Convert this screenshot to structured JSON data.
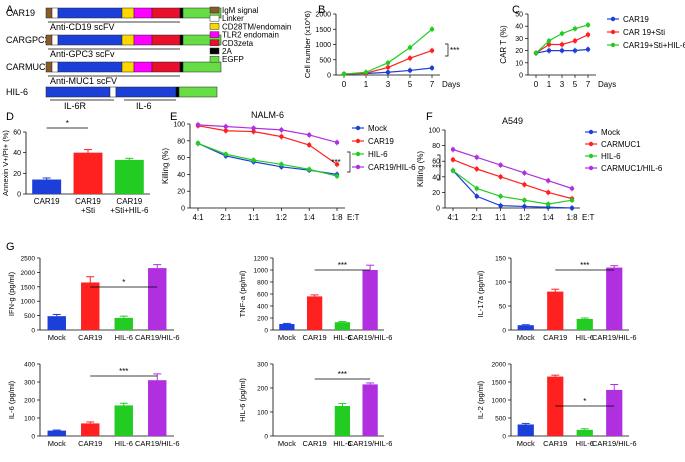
{
  "colors": {
    "blue": "#1b3fd8",
    "red": "#ff2020",
    "green": "#22cc22",
    "purple": "#b030e0",
    "igm": "#8b5a2b",
    "linker": "#ffffff",
    "cd28": "#ffd700",
    "tlr2": "#ff00ff",
    "cd3": "#e8102a",
    "t2a": "#000000",
    "egfp": "#66dd44"
  },
  "panel_letters": {
    "A": "A",
    "B": "B",
    "C": "C",
    "D": "D",
    "E": "E",
    "F": "F",
    "G": "G"
  },
  "constructs": [
    {
      "name": "CAR19",
      "label": "Anti-CD19 scFV",
      "segments": [
        "igm",
        "linker",
        "scfv",
        "cd28",
        "tlr2",
        "cd3",
        "t2a",
        "egfp"
      ]
    },
    {
      "name": "CARGPC3",
      "label": "Anti-GPC3 scFv",
      "segments": [
        "igm",
        "linker",
        "scfv",
        "cd28",
        "tlr2",
        "cd3",
        "t2a",
        "egfp"
      ]
    },
    {
      "name": "CARMUC1",
      "label": "Anti-MUC1 scFV",
      "segments": [
        "igm",
        "linker",
        "scfv",
        "cd28",
        "tlr2",
        "cd3",
        "t2a",
        "egfp"
      ]
    },
    {
      "name": "HIL-6",
      "label": "",
      "sublabels": [
        "IL-6R",
        "IL-6"
      ],
      "segments": [
        "il6r",
        "linker",
        "il6",
        "t2a",
        "egfp"
      ]
    }
  ],
  "construct_legend": [
    {
      "label": "IgM signal",
      "color_key": "igm"
    },
    {
      "label": "Linker",
      "color_key": "linker"
    },
    {
      "label": "CD28TM/endomain",
      "color_key": "cd28"
    },
    {
      "label": "TLR2 endomain",
      "color_key": "tlr2"
    },
    {
      "label": "CD3zeta",
      "color_key": "cd3"
    },
    {
      "label": "2A",
      "color_key": "t2a"
    },
    {
      "label": "EGFP",
      "color_key": "egfp"
    }
  ],
  "chart_data": [
    {
      "panel": "B",
      "type": "line",
      "ylabel": "Cell number (x10^6)",
      "xlabel": "Days",
      "x": [
        0,
        1,
        3,
        5,
        7
      ],
      "ylim": [
        0,
        2000
      ],
      "yticks": [
        "0",
        "500",
        "1000",
        "1500",
        "2000"
      ],
      "series": [
        {
          "name": "CAR19",
          "color_key": "blue",
          "values": [
            30,
            50,
            90,
            150,
            230
          ]
        },
        {
          "name": "CAR 19+Sti",
          "color_key": "red",
          "values": [
            30,
            60,
            250,
            550,
            800
          ]
        },
        {
          "name": "CAR19+Sti+HIL-6",
          "color_key": "green",
          "values": [
            30,
            90,
            400,
            900,
            1500
          ]
        }
      ],
      "annotation": "***"
    },
    {
      "panel": "C",
      "type": "line",
      "ylabel": "CAR T (%)",
      "xlabel": "Days",
      "x": [
        0,
        1,
        3,
        5,
        7
      ],
      "ylim": [
        0,
        50
      ],
      "yticks": [
        "0",
        "10",
        "20",
        "30",
        "40",
        "50"
      ],
      "series": [
        {
          "name": "CAR19",
          "color_key": "blue",
          "values": [
            18,
            20,
            20,
            20,
            21
          ]
        },
        {
          "name": "CAR 19+Sti",
          "color_key": "red",
          "values": [
            18,
            25,
            25,
            28,
            33
          ]
        },
        {
          "name": "CAR19+Sti+HIL-6",
          "color_key": "green",
          "values": [
            18,
            28,
            34,
            38,
            41
          ]
        }
      ]
    },
    {
      "panel": "D",
      "type": "bar",
      "ylabel": "Annexin V+/PI+ (%)",
      "ylim": [
        0,
        60
      ],
      "yticks": [
        "0",
        "20",
        "40",
        "60"
      ],
      "categories": [
        "CAR19",
        "CAR19\n+Sti",
        "CAR19\n+Sti+HIL-6"
      ],
      "category_lines": [
        [
          "CAR19"
        ],
        [
          "CAR19",
          "+Sti"
        ],
        [
          "CAR19",
          "+Sti+HIL-6"
        ]
      ],
      "values": [
        14,
        40,
        33
      ],
      "errors": [
        1.5,
        3,
        1.5
      ],
      "color_keys": [
        "blue",
        "red",
        "green"
      ],
      "annotation": "*"
    },
    {
      "panel": "E",
      "type": "line",
      "title": "NALM-6",
      "ylabel": "Killing (%)",
      "xlabel": "E:T",
      "categories": [
        "4:1",
        "2:1",
        "1:1",
        "1:2",
        "1:4",
        "1:8"
      ],
      "ylim": [
        0,
        100
      ],
      "yticks": [
        "0",
        "20",
        "40",
        "60",
        "80",
        "100"
      ],
      "series": [
        {
          "name": "Mock",
          "color_key": "blue",
          "values": [
            77,
            62,
            55,
            49,
            45,
            40
          ]
        },
        {
          "name": "CAR19",
          "color_key": "red",
          "values": [
            98,
            92,
            91,
            85,
            75,
            52
          ]
        },
        {
          "name": "HIL-6",
          "color_key": "green",
          "values": [
            77,
            64,
            57,
            52,
            46,
            38
          ]
        },
        {
          "name": "CAR19/HIL-6",
          "color_key": "purple",
          "values": [
            99,
            97,
            95,
            93,
            87,
            78
          ]
        }
      ],
      "annotation": "***"
    },
    {
      "panel": "F",
      "type": "line",
      "title": "A549",
      "ylabel": "Killing (%)",
      "xlabel": "E:T",
      "categories": [
        "4:1",
        "2:1",
        "1:1",
        "1:2",
        "1:4",
        "1:8"
      ],
      "ylim": [
        0,
        100
      ],
      "yticks": [
        "0",
        "20",
        "40",
        "60",
        "80",
        "100"
      ],
      "series": [
        {
          "name": "Mock",
          "color_key": "blue",
          "values": [
            48,
            15,
            3,
            2,
            1,
            0
          ]
        },
        {
          "name": "CARMUC1",
          "color_key": "red",
          "values": [
            62,
            50,
            40,
            30,
            20,
            12
          ]
        },
        {
          "name": "HIL-6",
          "color_key": "green",
          "values": [
            48,
            25,
            15,
            10,
            5,
            10
          ]
        },
        {
          "name": "CARMUC1/HIL-6",
          "color_key": "purple",
          "values": [
            75,
            65,
            55,
            45,
            35,
            25
          ]
        }
      ],
      "annotation": "***"
    },
    {
      "panel": "G1",
      "type": "bar",
      "ylabel": "IFN-g (pg/ml)",
      "ylim": [
        0,
        2500
      ],
      "yticks": [
        "0",
        "500",
        "1000",
        "1500",
        "2000",
        "2500"
      ],
      "categories": [
        "Mock",
        "CAR19",
        "HIL-6",
        "CAR19/HIL-6"
      ],
      "values": [
        480,
        1650,
        420,
        2150
      ],
      "errors": [
        60,
        200,
        60,
        120
      ],
      "color_keys": [
        "blue",
        "red",
        "green",
        "purple"
      ],
      "annotation": "*"
    },
    {
      "panel": "G2",
      "type": "bar",
      "ylabel": "TNF-a (pg/ml)",
      "ylim": [
        0,
        1200
      ],
      "yticks": [
        "0",
        "200",
        "400",
        "600",
        "800",
        "1000",
        "1200"
      ],
      "categories": [
        "Mock",
        "CAR19",
        "HIL-6",
        "CAR19/HIL-6"
      ],
      "values": [
        100,
        560,
        130,
        1000
      ],
      "errors": [
        10,
        25,
        10,
        80
      ],
      "color_keys": [
        "blue",
        "red",
        "green",
        "purple"
      ],
      "annotation": "***"
    },
    {
      "panel": "G3",
      "type": "bar",
      "ylabel": "IL-17a (pg/ml)",
      "ylim": [
        0,
        150
      ],
      "yticks": [
        "0",
        "50",
        "100",
        "150"
      ],
      "categories": [
        "Mock",
        "CAR19",
        "HIL-6",
        "CAR19/HIL-6"
      ],
      "values": [
        10,
        80,
        23,
        130
      ],
      "errors": [
        1,
        5,
        2,
        4
      ],
      "color_keys": [
        "blue",
        "red",
        "green",
        "purple"
      ],
      "annotation": "***"
    },
    {
      "panel": "G4",
      "type": "bar",
      "ylabel": "IL-6 (pg/ml)",
      "ylim": [
        0,
        400
      ],
      "yticks": [
        "0",
        "100",
        "200",
        "300",
        "400"
      ],
      "categories": [
        "Mock",
        "CAR19",
        "HIL-6",
        "CAR19/HIL-6"
      ],
      "values": [
        30,
        70,
        170,
        310
      ],
      "errors": [
        3,
        8,
        12,
        35
      ],
      "color_keys": [
        "blue",
        "red",
        "green",
        "purple"
      ],
      "annotation": "***"
    },
    {
      "panel": "G5",
      "type": "bar",
      "ylabel": "HIL-6 (pg/ml)",
      "ylim": [
        0,
        300
      ],
      "yticks": [
        "0",
        "100",
        "200",
        "300"
      ],
      "categories": [
        "Mock",
        "CAR19",
        "HIL-6",
        "CAR19/HIL-6"
      ],
      "values": [
        0,
        0,
        125,
        215
      ],
      "errors": [
        0,
        0,
        10,
        6
      ],
      "color_keys": [
        "blue",
        "red",
        "green",
        "purple"
      ],
      "annotation": "***"
    },
    {
      "panel": "G6",
      "type": "bar",
      "ylabel": "IL-2 (pg/ml)",
      "ylim": [
        0,
        2000
      ],
      "yticks": [
        "0",
        "500",
        "1000",
        "1500",
        "2000"
      ],
      "categories": [
        "Mock",
        "CAR19",
        "HIL-6",
        "CAR19/HIL-6"
      ],
      "values": [
        320,
        1650,
        170,
        1280
      ],
      "errors": [
        30,
        40,
        30,
        150
      ],
      "color_keys": [
        "blue",
        "red",
        "green",
        "purple"
      ],
      "annotation": "*"
    }
  ]
}
